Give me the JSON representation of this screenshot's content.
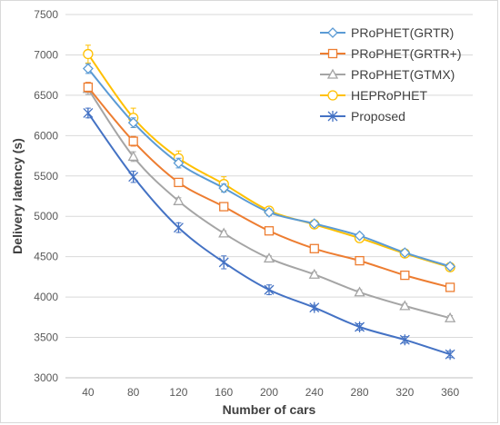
{
  "chart_data": {
    "type": "line",
    "xlabel": "Number of cars",
    "ylabel": "Delivery latency (s)",
    "x": [
      40,
      80,
      120,
      160,
      200,
      240,
      280,
      320,
      360
    ],
    "ylim": [
      3000,
      7500
    ],
    "yticks": [
      3000,
      3500,
      4000,
      4500,
      5000,
      5500,
      6000,
      6500,
      7000,
      7500
    ],
    "grid": "horizontal",
    "legend_position": "top-right",
    "series": [
      {
        "name": "PRoPHET(GRTR)",
        "marker": "diamond",
        "color": "#5b9bd5",
        "values": [
          6830,
          6160,
          5660,
          5350,
          5050,
          4910,
          4760,
          4550,
          4380
        ],
        "errors": [
          60,
          60,
          60,
          50,
          40,
          30,
          30,
          30,
          30
        ]
      },
      {
        "name": "PRoPHET(GRTR+)",
        "marker": "square",
        "color": "#ed7d31",
        "values": [
          6600,
          5930,
          5420,
          5120,
          4820,
          4600,
          4450,
          4270,
          4120
        ],
        "errors": [
          60,
          60,
          40,
          50,
          40,
          30,
          30,
          30,
          30
        ]
      },
      {
        "name": "PRoPHET(GTMX)",
        "marker": "triangle",
        "color": "#a5a5a5",
        "values": [
          6580,
          5740,
          5190,
          4790,
          4480,
          4280,
          4060,
          3890,
          3740
        ],
        "errors": [
          70,
          60,
          40,
          30,
          30,
          30,
          30,
          30,
          30
        ]
      },
      {
        "name": "HEPRoPHET",
        "marker": "circle",
        "color": "#ffc000",
        "values": [
          7010,
          6220,
          5720,
          5400,
          5070,
          4900,
          4730,
          4540,
          4370
        ],
        "errors": [
          110,
          120,
          90,
          90,
          40,
          30,
          30,
          30,
          30
        ]
      },
      {
        "name": "Proposed",
        "marker": "asterisk",
        "color": "#4472c4",
        "values": [
          6280,
          5490,
          4860,
          4430,
          4090,
          3870,
          3630,
          3470,
          3290
        ],
        "errors": [
          60,
          70,
          60,
          80,
          60,
          30,
          40,
          40,
          40
        ]
      }
    ]
  }
}
